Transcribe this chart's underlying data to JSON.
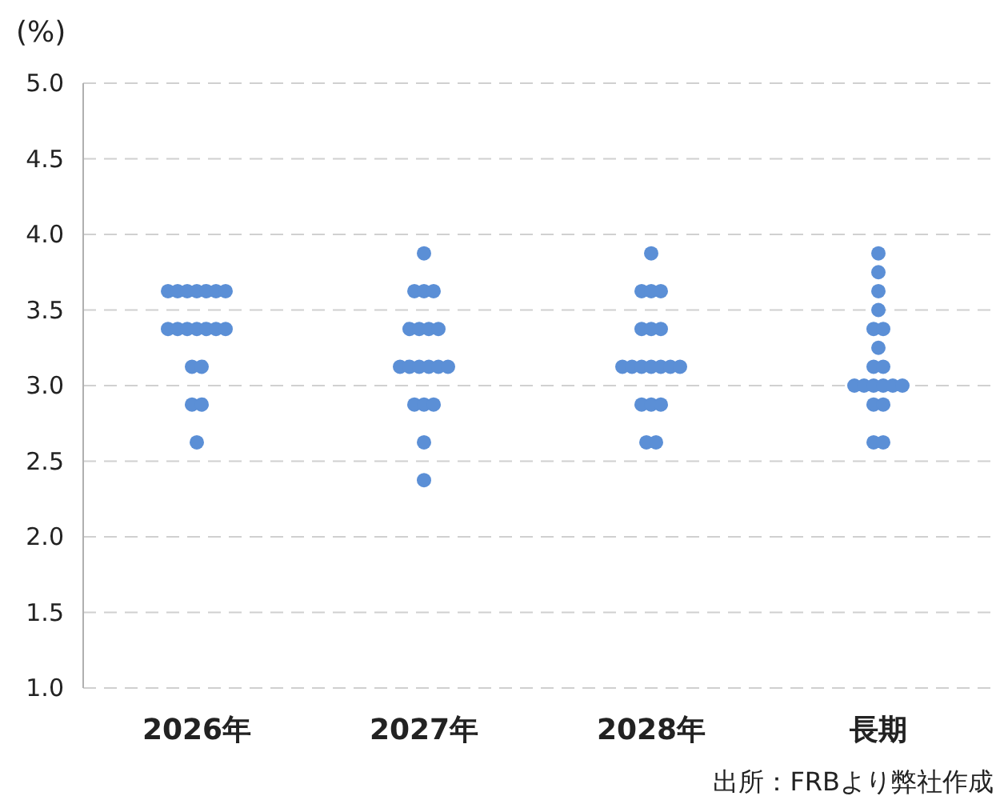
{
  "chart_data": {
    "type": "scatter",
    "ylabel": "(%)",
    "categories": [
      "2026年",
      "2027年",
      "2028年",
      "長期"
    ],
    "series": [
      {
        "color": "#5b8fd6",
        "marker": "circle",
        "x": [
          "2026年",
          "2026年",
          "2026年",
          "2026年",
          "2026年",
          "2026年",
          "2026年",
          "2026年",
          "2026年",
          "2026年",
          "2026年",
          "2026年",
          "2026年",
          "2026年",
          "2026年",
          "2026年",
          "2026年",
          "2026年",
          "2026年",
          "2027年",
          "2027年",
          "2027年",
          "2027年",
          "2027年",
          "2027年",
          "2027年",
          "2027年",
          "2027年",
          "2027年",
          "2027年",
          "2027年",
          "2027年",
          "2027年",
          "2027年",
          "2027年",
          "2027年",
          "2027年",
          "2027年",
          "2028年",
          "2028年",
          "2028年",
          "2028年",
          "2028年",
          "2028年",
          "2028年",
          "2028年",
          "2028年",
          "2028年",
          "2028年",
          "2028年",
          "2028年",
          "2028年",
          "2028年",
          "2028年",
          "2028年",
          "2028年",
          "2028年",
          "長期",
          "長期",
          "長期",
          "長期",
          "長期",
          "長期",
          "長期",
          "長期",
          "長期",
          "長期",
          "長期",
          "長期",
          "長期",
          "長期",
          "長期",
          "長期",
          "長期",
          "長期",
          "長期"
        ],
        "values": [
          3.625,
          3.625,
          3.625,
          3.625,
          3.625,
          3.625,
          3.625,
          3.375,
          3.375,
          3.375,
          3.375,
          3.375,
          3.375,
          3.375,
          3.125,
          3.125,
          2.875,
          2.875,
          2.625,
          3.875,
          3.625,
          3.625,
          3.625,
          3.375,
          3.375,
          3.375,
          3.375,
          3.125,
          3.125,
          3.125,
          3.125,
          3.125,
          3.125,
          2.875,
          2.875,
          2.875,
          2.625,
          2.375,
          3.875,
          3.625,
          3.625,
          3.625,
          3.375,
          3.375,
          3.375,
          3.125,
          3.125,
          3.125,
          3.125,
          3.125,
          3.125,
          3.125,
          2.875,
          2.875,
          2.875,
          2.625,
          2.625,
          3.875,
          3.75,
          3.625,
          3.5,
          3.375,
          3.375,
          3.25,
          3.125,
          3.125,
          3.0,
          3.0,
          3.0,
          3.0,
          3.0,
          3.0,
          2.875,
          2.875,
          2.625,
          2.625
        ]
      }
    ],
    "ylim": [
      1.0,
      5.0
    ],
    "yticks": [
      {
        "value": 1.0,
        "label": "1.0"
      },
      {
        "value": 1.5,
        "label": "1.5"
      },
      {
        "value": 2.0,
        "label": "2.0"
      },
      {
        "value": 2.5,
        "label": "2.5"
      },
      {
        "value": 3.0,
        "label": "3.0"
      },
      {
        "value": 3.5,
        "label": "3.5"
      },
      {
        "value": 4.0,
        "label": "4.0"
      },
      {
        "value": 4.5,
        "label": "4.5"
      },
      {
        "value": 5.0,
        "label": "5.0"
      }
    ],
    "grid": "y",
    "annotations": [
      "出所：FRBより弊社作成"
    ]
  }
}
